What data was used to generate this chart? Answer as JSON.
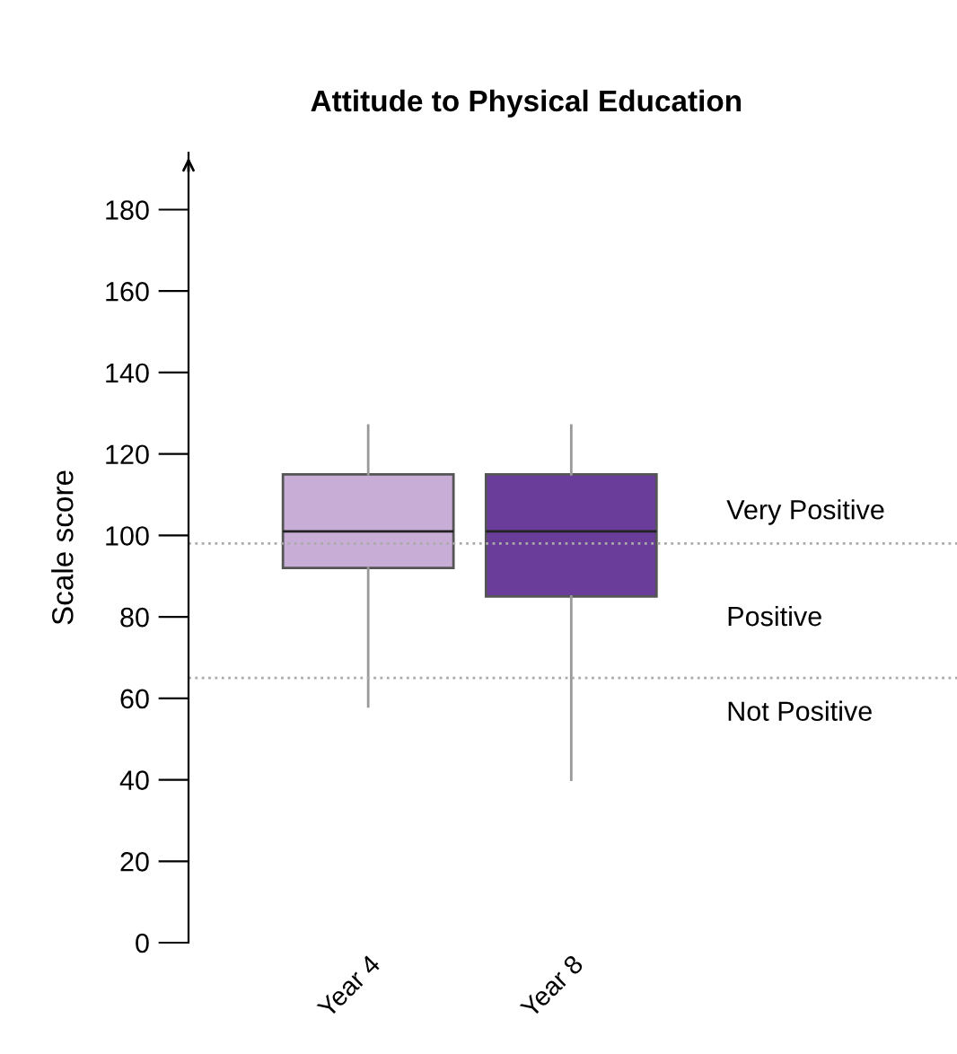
{
  "chart_data": {
    "type": "box",
    "title": "Attitude to Physical Education",
    "ylabel": "Scale score",
    "categories": [
      "Year 4",
      "Year 8"
    ],
    "colors": [
      "#c8add6",
      "#6a3d9a"
    ],
    "boxes": [
      {
        "low": 58,
        "q1": 92,
        "median": 101,
        "q3": 115,
        "high": 127
      },
      {
        "low": 40,
        "q1": 85,
        "median": 101,
        "q3": 115,
        "high": 127
      }
    ],
    "ylim": [
      0,
      194
    ],
    "yticks": [
      0,
      20,
      40,
      60,
      80,
      100,
      120,
      140,
      160,
      180
    ],
    "ref_lines": [
      {
        "axis": "y",
        "value": 98,
        "color": "#aaaaaa",
        "line_style": "dotted"
      },
      {
        "axis": "y",
        "value": 65,
        "color": "#aaaaaa",
        "line_style": "dotted"
      }
    ],
    "annotations": [
      "Very Positive",
      "Positive",
      "Not Positive"
    ],
    "grid": false,
    "legend": false
  }
}
